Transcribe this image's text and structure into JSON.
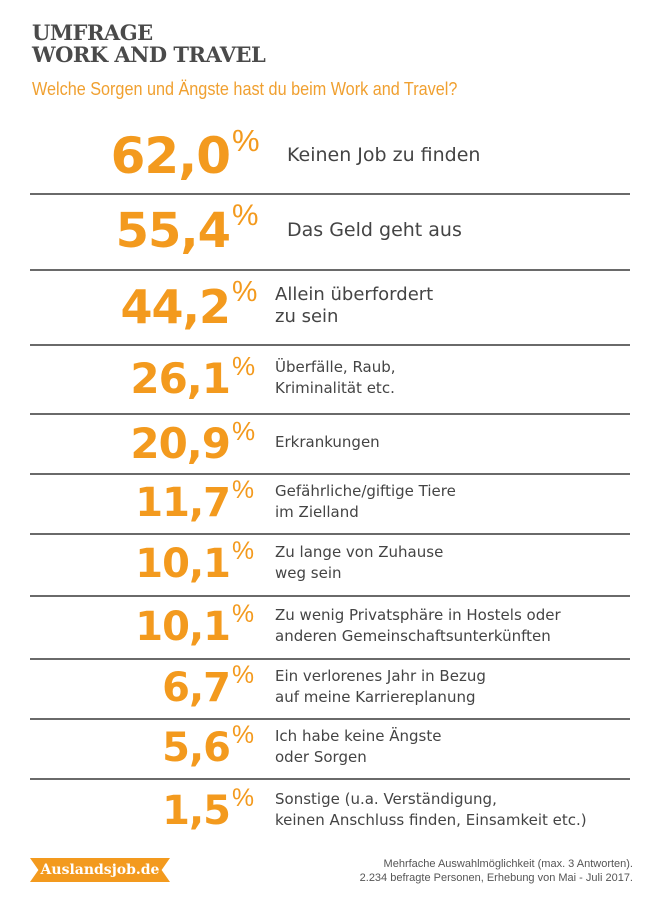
{
  "header": {
    "title_line1": "UMFRAGE",
    "title_line2": "WORK AND TRAVEL",
    "subtitle": "Welche Sorgen und Ängste hast du beim Work and Travel?"
  },
  "chart_data": {
    "type": "table",
    "title": "Welche Sorgen und Ängste hast du beim Work and Travel?",
    "unit": "%",
    "rows": [
      {
        "value": "62,0",
        "label": "Keinen Job zu finden"
      },
      {
        "value": "55,4",
        "label": "Das Geld geht aus"
      },
      {
        "value": "44,2",
        "label": "Allein überfordert\nzu sein"
      },
      {
        "value": "26,1",
        "label": "Überfälle, Raub,\nKriminalität etc."
      },
      {
        "value": "20,9",
        "label": "Erkrankungen"
      },
      {
        "value": "11,7",
        "label": "Gefährliche/giftige Tiere\nim Zielland"
      },
      {
        "value": "10,1",
        "label": "Zu lange von Zuhause\nweg sein"
      },
      {
        "value": "10,1",
        "label": "Zu wenig Privatsphäre in Hostels oder\nanderen Gemeinschaftsunterkünften"
      },
      {
        "value": "6,7",
        "label": "Ein verlorenes Jahr in Bezug\nauf meine Karriereplanung"
      },
      {
        "value": "5,6",
        "label": "Ich habe keine Ängste\noder Sorgen"
      },
      {
        "value": "1,5",
        "label": "Sonstige (u.a. Verständigung,\nkeinen Anschluss finden, Einsamkeit etc.)"
      }
    ]
  },
  "footer": {
    "logo": "Auslandsjob.de",
    "note": "Mehrfache Auswahlmöglichkeit (max. 3 Antworten).\n2.234 befragte Personen, Erhebung von Mai - Juli 2017."
  },
  "colors": {
    "accent": "#f39a1e",
    "text": "#444444",
    "divider": "#6a6a6a"
  }
}
